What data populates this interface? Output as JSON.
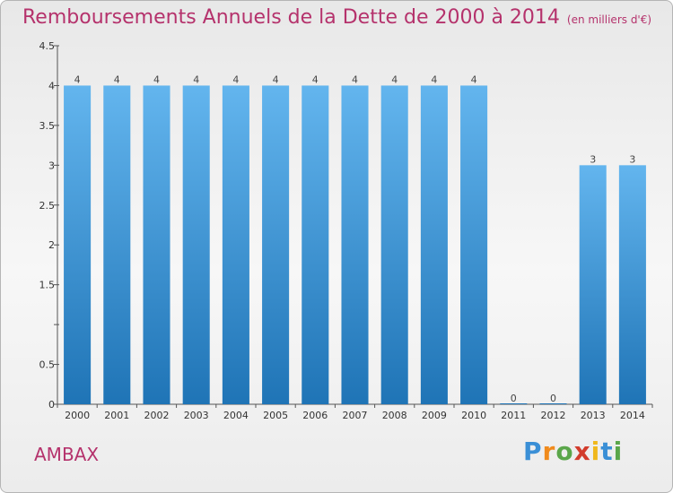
{
  "title": "Remboursements Annuels de la Dette de 2000 à 2014",
  "unit_note": "(en milliers d'€)",
  "commune": "AMBAX",
  "logo": {
    "text": "Proxiti",
    "letter_colors": [
      "#3a8fd6",
      "#f08a1c",
      "#5aa64a",
      "#d23c2c",
      "#f0b81c",
      "#3a8fd6",
      "#5aa64a"
    ]
  },
  "colors": {
    "title": "#b5326c",
    "bar_top": "#63b5ee",
    "bar_bottom": "#1f74b6",
    "axis": "#555555"
  },
  "chart_data": {
    "type": "bar",
    "categories": [
      "2000",
      "2001",
      "2002",
      "2003",
      "2004",
      "2005",
      "2006",
      "2007",
      "2008",
      "2009",
      "2010",
      "2011",
      "2012",
      "2013",
      "2014"
    ],
    "values": [
      4,
      4,
      4,
      4,
      4,
      4,
      4,
      4,
      4,
      4,
      4,
      0,
      0,
      3,
      3
    ],
    "value_labels": [
      "4",
      "4",
      "4",
      "4",
      "4",
      "4",
      "4",
      "4",
      "4",
      "4",
      "4",
      "0",
      "0",
      "3",
      "3"
    ],
    "y_ticks": [
      0,
      0.5,
      1,
      1.5,
      2,
      2.5,
      3,
      3.5,
      4,
      4.5
    ],
    "y_tick_labels": [
      "0",
      "0.5",
      "",
      "1.5",
      "2",
      "2.5",
      "3",
      "3.5",
      "4",
      "4.5"
    ],
    "ylim": [
      0,
      4.5
    ],
    "grid": false,
    "xlabel": "",
    "ylabel": ""
  }
}
